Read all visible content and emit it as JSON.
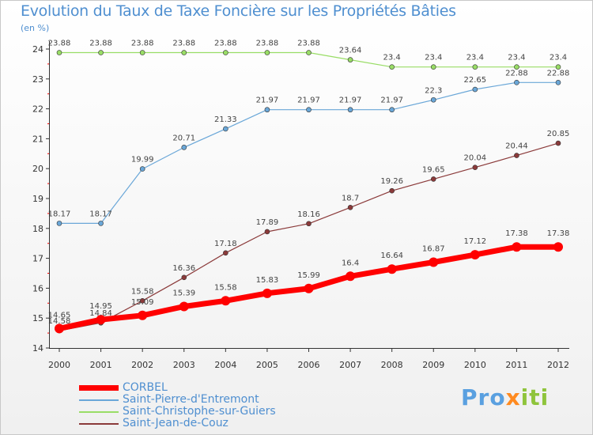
{
  "header": {
    "title": "Evolution du Taux de Taxe Foncière sur les Propriétés Bâties",
    "unit": "(en %)"
  },
  "logo": {
    "text": "Proxiti"
  },
  "colors": {
    "corbel": "#ff0000",
    "saint_pierre": "#6aa7d8",
    "saint_christophe": "#99dd66",
    "saint_jean": "#8b3a3a",
    "axis": "#333333",
    "tick_red": "#ff0000"
  },
  "chart_data": {
    "type": "line",
    "title": "Evolution du Taux de Taxe Foncière sur les Propriétés Bâties",
    "ylabel": "(en %)",
    "xlabel": "",
    "x": [
      "2000",
      "2001",
      "2002",
      "2003",
      "2004",
      "2005",
      "2006",
      "2007",
      "2008",
      "2009",
      "2010",
      "2011",
      "2012"
    ],
    "ylim": [
      14,
      24
    ],
    "yticks": [
      14,
      15,
      16,
      17,
      18,
      19,
      20,
      21,
      22,
      23,
      24
    ],
    "grid": false,
    "legend_position": "bottom-left",
    "series": [
      {
        "name": "CORBEL",
        "color": "#ff0000",
        "values": [
          14.65,
          14.95,
          15.09,
          15.39,
          15.58,
          15.83,
          15.99,
          16.4,
          16.64,
          16.87,
          17.12,
          17.38,
          17.38
        ],
        "labels": [
          "14.65",
          "14.95",
          "15.09",
          "15.39",
          "15.58",
          "15.83",
          "15.99",
          "16.4",
          "16.64",
          "16.87",
          "17.12",
          "17.38",
          "17.38"
        ]
      },
      {
        "name": "Saint-Pierre-d'Entremont",
        "color": "#6aa7d8",
        "values": [
          18.17,
          18.17,
          19.99,
          20.71,
          21.33,
          21.97,
          21.97,
          21.97,
          21.97,
          22.3,
          22.65,
          22.88,
          22.88
        ],
        "labels": [
          "18.17",
          "18.17",
          "19.99",
          "20.71",
          "21.33",
          "21.97",
          "21.97",
          "21.97",
          "21.97",
          "22.3",
          "22.65",
          "22.88",
          "22.88"
        ]
      },
      {
        "name": "Saint-Christophe-sur-Guiers",
        "color": "#99dd66",
        "values": [
          23.88,
          23.88,
          23.88,
          23.88,
          23.88,
          23.88,
          23.88,
          23.64,
          23.4,
          23.4,
          23.4,
          23.4,
          23.4
        ],
        "labels": [
          "23.88",
          "23.88",
          "23.88",
          "23.88",
          "23.88",
          "23.88",
          "23.88",
          "23.64",
          "23.4",
          "23.4",
          "23.4",
          "23.4",
          "23.4"
        ]
      },
      {
        "name": "Saint-Jean-de-Couz",
        "color": "#8b3a3a",
        "values": [
          14.58,
          14.84,
          15.58,
          16.36,
          17.18,
          17.89,
          18.16,
          18.7,
          19.26,
          19.65,
          20.04,
          20.44,
          20.85
        ],
        "labels": [
          "14.58",
          "14.84",
          "15.58",
          "16.36",
          "17.18",
          "17.89",
          "18.16",
          "18.7",
          "19.26",
          "19.65",
          "20.04",
          "20.44",
          "20.85"
        ]
      }
    ]
  }
}
